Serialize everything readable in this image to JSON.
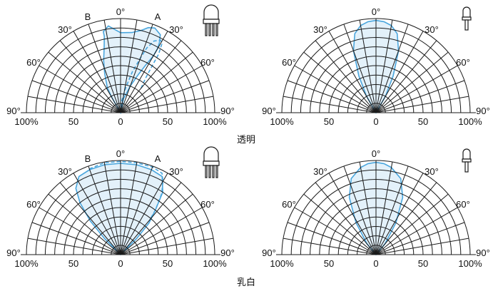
{
  "figure": {
    "captions": [
      "透明",
      "乳白"
    ],
    "angle_labels": [
      "90°",
      "60°",
      "30°",
      "0°",
      "30°",
      "60°",
      "90°"
    ],
    "scale_labels": [
      "100%",
      "50",
      "0",
      "50",
      "100%"
    ],
    "accent_color": "#4aa6dd",
    "fill_color": "#d9ecf8",
    "panels": [
      {
        "row": "透明",
        "package": "wide-angle-3pin-package-icon",
        "beam_labels": [
          "B",
          "A"
        ],
        "curves": [
          {
            "style": "solid",
            "points": [
              [
                0,
                0
              ],
              [
                -30,
                18
              ],
              [
                -28,
                30
              ],
              [
                -22,
                45
              ],
              [
                -18,
                58
              ],
              [
                -14,
                72
              ],
              [
                -12,
                83
              ],
              [
                -12,
                88
              ],
              [
                -8,
                93
              ],
              [
                0,
                85
              ],
              [
                8,
                86
              ],
              [
                14,
                90
              ],
              [
                18,
                95
              ],
              [
                22,
                97
              ],
              [
                27,
                93
              ],
              [
                29,
                85
              ],
              [
                30,
                78
              ],
              [
                30,
                70
              ],
              [
                28,
                58
              ],
              [
                25,
                45
              ],
              [
                20,
                30
              ],
              [
                12,
                15
              ],
              [
                0,
                0
              ]
            ]
          },
          {
            "style": "dashed",
            "points": [
              [
                0,
                0
              ],
              [
                5,
                12
              ],
              [
                12,
                28
              ],
              [
                16,
                45
              ],
              [
                20,
                62
              ],
              [
                22,
                74
              ],
              [
                25,
                84
              ],
              [
                29,
                88
              ],
              [
                31,
                85
              ],
              [
                33,
                74
              ],
              [
                34,
                60
              ],
              [
                36,
                45
              ],
              [
                40,
                34
              ]
            ]
          }
        ]
      },
      {
        "row": "透明",
        "package": "narrow-lens-package-icon",
        "beam_labels": [],
        "curves": [
          {
            "style": "solid",
            "points": [
              [
                -90,
                0
              ],
              [
                -30,
                20
              ],
              [
                -25,
                43
              ],
              [
                -20,
                70
              ],
              [
                -15,
                87
              ],
              [
                -10,
                94
              ],
              [
                -5,
                97
              ],
              [
                0,
                98
              ],
              [
                5,
                97
              ],
              [
                10,
                94
              ],
              [
                15,
                87
              ],
              [
                20,
                70
              ],
              [
                25,
                43
              ],
              [
                30,
                20
              ],
              [
                90,
                0
              ]
            ]
          }
        ]
      },
      {
        "row": "乳白",
        "package": "wide-angle-3pin-package-icon",
        "beam_labels": [
          "B",
          "A"
        ],
        "curves": [
          {
            "style": "solid",
            "points": [
              [
                -90,
                0
              ],
              [
                -45,
                24
              ],
              [
                -42,
                48
              ],
              [
                -38,
                70
              ],
              [
                -34,
                85
              ],
              [
                -28,
                94
              ],
              [
                -20,
                96
              ],
              [
                -10,
                97
              ],
              [
                0,
                97
              ],
              [
                10,
                97
              ],
              [
                20,
                96
              ],
              [
                28,
                94
              ],
              [
                34,
                80
              ],
              [
                38,
                60
              ],
              [
                42,
                45
              ],
              [
                45,
                24
              ],
              [
                90,
                0
              ]
            ]
          },
          {
            "style": "dashed",
            "points": [
              [
                -20,
                97
              ],
              [
                -10,
                99
              ],
              [
                0,
                99
              ],
              [
                10,
                99
              ],
              [
                20,
                99
              ],
              [
                27,
                97
              ],
              [
                30,
                90
              ],
              [
                34,
                78
              ],
              [
                38,
                60
              ],
              [
                40,
                48
              ]
            ]
          }
        ]
      },
      {
        "row": "乳白",
        "package": "narrow-lens-package-icon",
        "beam_labels": [],
        "curves": [
          {
            "style": "solid",
            "points": [
              [
                -90,
                0
              ],
              [
                -40,
                15
              ],
              [
                -32,
                40
              ],
              [
                -25,
                67
              ],
              [
                -18,
                85
              ],
              [
                -10,
                94
              ],
              [
                -5,
                97
              ],
              [
                0,
                98
              ],
              [
                5,
                97
              ],
              [
                10,
                94
              ],
              [
                18,
                85
              ],
              [
                25,
                67
              ],
              [
                32,
                40
              ],
              [
                40,
                15
              ],
              [
                90,
                0
              ]
            ]
          }
        ]
      }
    ]
  }
}
